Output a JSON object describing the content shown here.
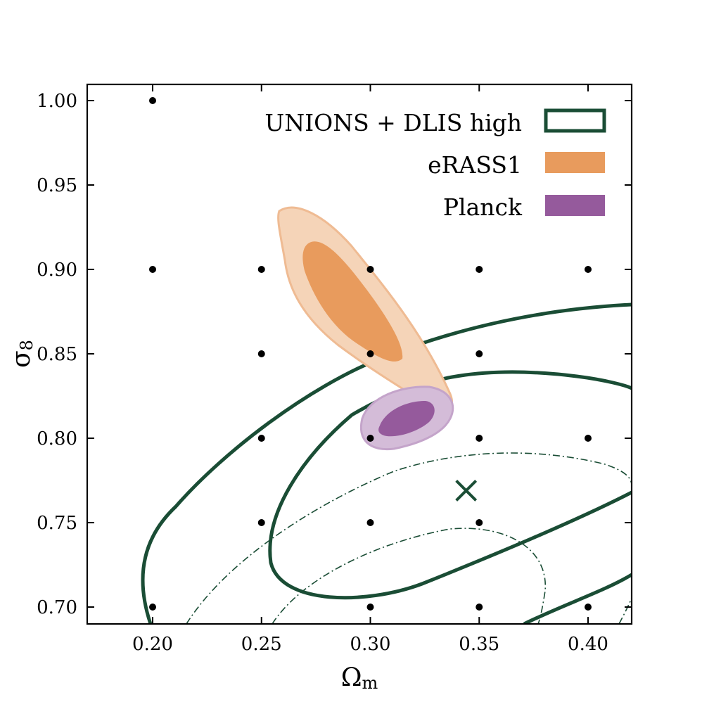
{
  "chart_data": {
    "type": "contour",
    "xlabel_main": "Ω",
    "xlabel_sub": "m",
    "ylabel_main": "σ",
    "ylabel_sub": "8",
    "xlim": [
      0.17,
      0.42
    ],
    "ylim": [
      0.69,
      1.01
    ],
    "xticks": [
      0.2,
      0.25,
      0.3,
      0.35,
      0.4
    ],
    "yticks": [
      0.7,
      0.75,
      0.8,
      0.85,
      0.9,
      0.95,
      1.0
    ],
    "xtick_labels": [
      "0.20",
      "0.25",
      "0.30",
      "0.35",
      "0.40"
    ],
    "ytick_labels": [
      "0.70",
      "0.75",
      "0.80",
      "0.85",
      "0.90",
      "0.95",
      "1.00"
    ],
    "grid": false,
    "legend_position": "top-right",
    "legend": [
      {
        "label": "UNIONS + DLIS high",
        "style": "outline",
        "color": "#1a4d35"
      },
      {
        "label": "eRASS1",
        "style": "filled",
        "color": "#e89b5d"
      },
      {
        "label": "Planck",
        "style": "filled",
        "color": "#955a9c"
      }
    ],
    "grid_points": [
      [
        0.2,
        1.0
      ],
      [
        0.2,
        0.9
      ],
      [
        0.25,
        0.9
      ],
      [
        0.3,
        0.9
      ],
      [
        0.35,
        0.9
      ],
      [
        0.4,
        0.9
      ],
      [
        0.25,
        0.85
      ],
      [
        0.3,
        0.85
      ],
      [
        0.35,
        0.85
      ],
      [
        0.25,
        0.8
      ],
      [
        0.3,
        0.8
      ],
      [
        0.35,
        0.8
      ],
      [
        0.4,
        0.8
      ],
      [
        0.25,
        0.75
      ],
      [
        0.3,
        0.75
      ],
      [
        0.35,
        0.75
      ],
      [
        0.2,
        0.7
      ],
      [
        0.3,
        0.7
      ],
      [
        0.35,
        0.7
      ],
      [
        0.4,
        0.7
      ]
    ],
    "fiducial_marker": {
      "x": 0.344,
      "y": 0.769,
      "symbol": "x",
      "color": "#1a4d35"
    },
    "contours": [
      {
        "series": "UNIONS + DLIS high",
        "level": "1sigma",
        "style": "solid",
        "points": [
          [
            0.385,
            0.734
          ],
          [
            0.392,
            0.768
          ],
          [
            0.412,
            0.784
          ],
          [
            0.44,
            0.78
          ],
          [
            0.44,
            0.7
          ],
          [
            0.42,
            0.7
          ],
          [
            0.405,
            0.708
          ],
          [
            0.376,
            0.689
          ],
          [
            0.37,
            0.689
          ]
        ]
      },
      {
        "series": "UNIONS + DLIS high",
        "level": "1sigma",
        "style": "solid",
        "points": [
          [
            0.385,
            0.734
          ],
          [
            0.382,
            0.76
          ],
          [
            0.395,
            0.782
          ],
          [
            0.425,
            0.805
          ],
          [
            0.47,
            0.82
          ],
          [
            0.52,
            0.826
          ],
          [
            0.56,
            0.822
          ],
          [
            0.56,
            0.7
          ],
          [
            0.48,
            0.7
          ],
          [
            0.445,
            0.705
          ],
          [
            0.42,
            0.713
          ]
        ]
      },
      {
        "series": "UNIONS + DLIS high",
        "level": "2sigma",
        "style": "solid",
        "points": [
          [
            0.212,
            0.689
          ],
          [
            0.203,
            0.71
          ],
          [
            0.205,
            0.74
          ],
          [
            0.218,
            0.765
          ],
          [
            0.24,
            0.79
          ],
          [
            0.268,
            0.81
          ],
          [
            0.3,
            0.826
          ],
          [
            0.34,
            0.843
          ],
          [
            0.38,
            0.858
          ],
          [
            0.42,
            0.872
          ]
        ]
      }
    ],
    "eRASS1": {
      "inner_1sigma": [
        [
          0.265,
          0.915
        ],
        [
          0.27,
          0.89
        ],
        [
          0.285,
          0.862
        ],
        [
          0.3,
          0.84
        ],
        [
          0.315,
          0.832
        ],
        [
          0.318,
          0.852
        ],
        [
          0.305,
          0.88
        ],
        [
          0.288,
          0.905
        ],
        [
          0.273,
          0.92
        ]
      ],
      "outer_2sigma": [
        [
          0.257,
          0.931
        ],
        [
          0.258,
          0.895
        ],
        [
          0.272,
          0.862
        ],
        [
          0.298,
          0.835
        ],
        [
          0.32,
          0.815
        ],
        [
          0.335,
          0.808
        ],
        [
          0.34,
          0.822
        ],
        [
          0.33,
          0.85
        ],
        [
          0.305,
          0.885
        ],
        [
          0.282,
          0.915
        ],
        [
          0.262,
          0.935
        ]
      ]
    },
    "Planck": {
      "inner_1sigma": [
        [
          0.305,
          0.81
        ],
        [
          0.315,
          0.82
        ],
        [
          0.328,
          0.818
        ],
        [
          0.332,
          0.81
        ],
        [
          0.32,
          0.801
        ],
        [
          0.308,
          0.803
        ]
      ],
      "outer_2sigma": [
        [
          0.295,
          0.805
        ],
        [
          0.305,
          0.822
        ],
        [
          0.325,
          0.83
        ],
        [
          0.34,
          0.826
        ],
        [
          0.345,
          0.815
        ],
        [
          0.335,
          0.805
        ],
        [
          0.315,
          0.797
        ],
        [
          0.3,
          0.796
        ]
      ]
    }
  }
}
